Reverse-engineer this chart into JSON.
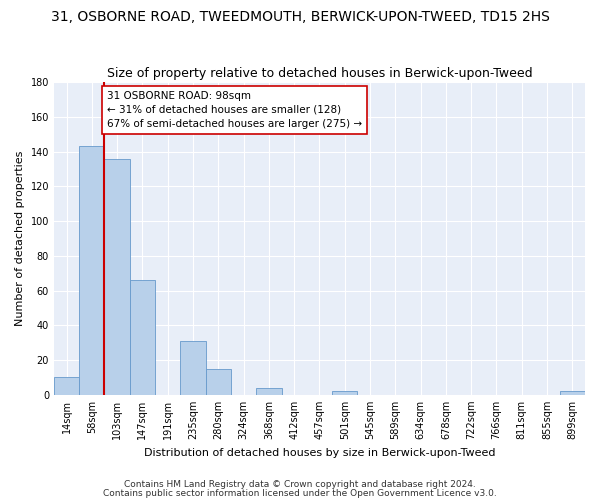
{
  "title": "31, OSBORNE ROAD, TWEEDMOUTH, BERWICK-UPON-TWEED, TD15 2HS",
  "subtitle": "Size of property relative to detached houses in Berwick-upon-Tweed",
  "xlabel": "Distribution of detached houses by size in Berwick-upon-Tweed",
  "ylabel": "Number of detached properties",
  "footnote1": "Contains HM Land Registry data © Crown copyright and database right 2024.",
  "footnote2": "Contains public sector information licensed under the Open Government Licence v3.0.",
  "bar_labels": [
    "14sqm",
    "58sqm",
    "103sqm",
    "147sqm",
    "191sqm",
    "235sqm",
    "280sqm",
    "324sqm",
    "368sqm",
    "412sqm",
    "457sqm",
    "501sqm",
    "545sqm",
    "589sqm",
    "634sqm",
    "678sqm",
    "722sqm",
    "766sqm",
    "811sqm",
    "855sqm",
    "899sqm"
  ],
  "bar_values": [
    10,
    143,
    136,
    66,
    0,
    31,
    15,
    0,
    4,
    0,
    0,
    2,
    0,
    0,
    0,
    0,
    0,
    0,
    0,
    0,
    2
  ],
  "bar_color": "#b8d0ea",
  "bar_edgecolor": "#6699cc",
  "vline_color": "#cc0000",
  "vline_x": 2,
  "annotation_title": "31 OSBORNE ROAD: 98sqm",
  "annotation_line1": "← 31% of detached houses are smaller (128)",
  "annotation_line2": "67% of semi-detached houses are larger (275) →",
  "annotation_box_facecolor": "#ffffff",
  "annotation_box_edgecolor": "#cc0000",
  "ylim": [
    0,
    180
  ],
  "yticks": [
    0,
    20,
    40,
    60,
    80,
    100,
    120,
    140,
    160,
    180
  ],
  "fig_facecolor": "#ffffff",
  "ax_facecolor": "#e8eef8",
  "grid_color": "#ffffff",
  "title_fontsize": 10,
  "subtitle_fontsize": 9,
  "ylabel_fontsize": 8,
  "xlabel_fontsize": 8,
  "tick_fontsize": 7,
  "annotation_fontsize": 7.5,
  "footnote_fontsize": 6.5
}
